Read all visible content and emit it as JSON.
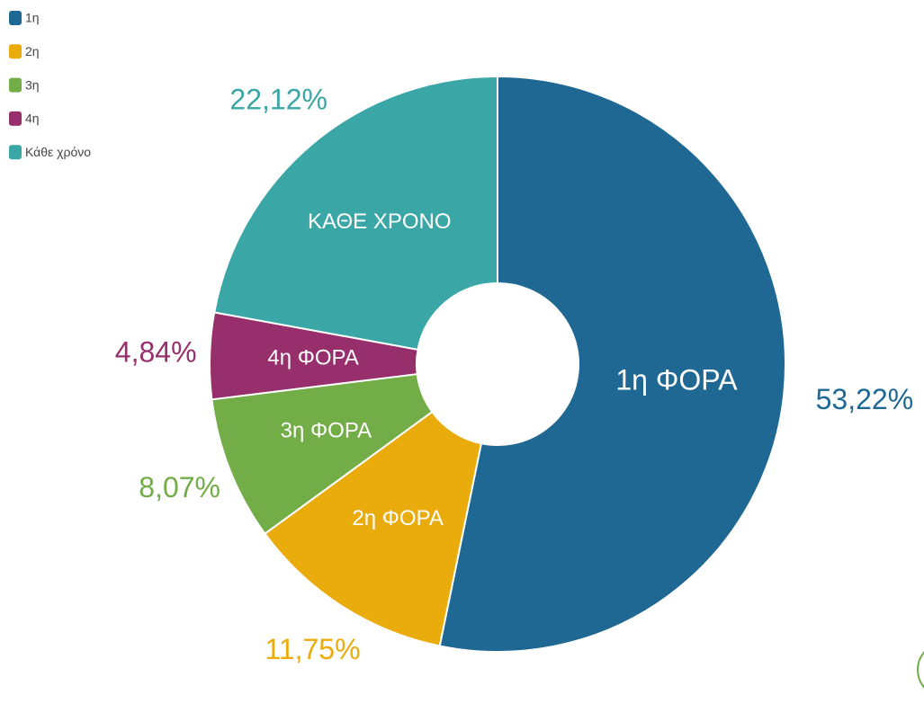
{
  "chart_data": {
    "type": "donut",
    "categories": [
      "1η",
      "2η",
      "3η",
      "4η",
      "Κάθε χρόνο"
    ],
    "segment_labels": [
      "1η ΦΟΡΑ",
      "2η ΦΟΡΑ",
      "3η ΦΟΡΑ",
      "4η ΦΟΡΑ",
      "ΚΑΘΕ ΧΡΟΝΟ"
    ],
    "values": [
      53.22,
      11.75,
      8.07,
      4.84,
      22.12
    ],
    "value_labels": [
      "53,22%",
      "11,75%",
      "8,07%",
      "4,84%",
      "22,12%"
    ],
    "colors": [
      "#1f6894",
      "#eaab0c",
      "#72ad47",
      "#962f6b",
      "#3aa6a6"
    ],
    "legend": "top-left"
  }
}
